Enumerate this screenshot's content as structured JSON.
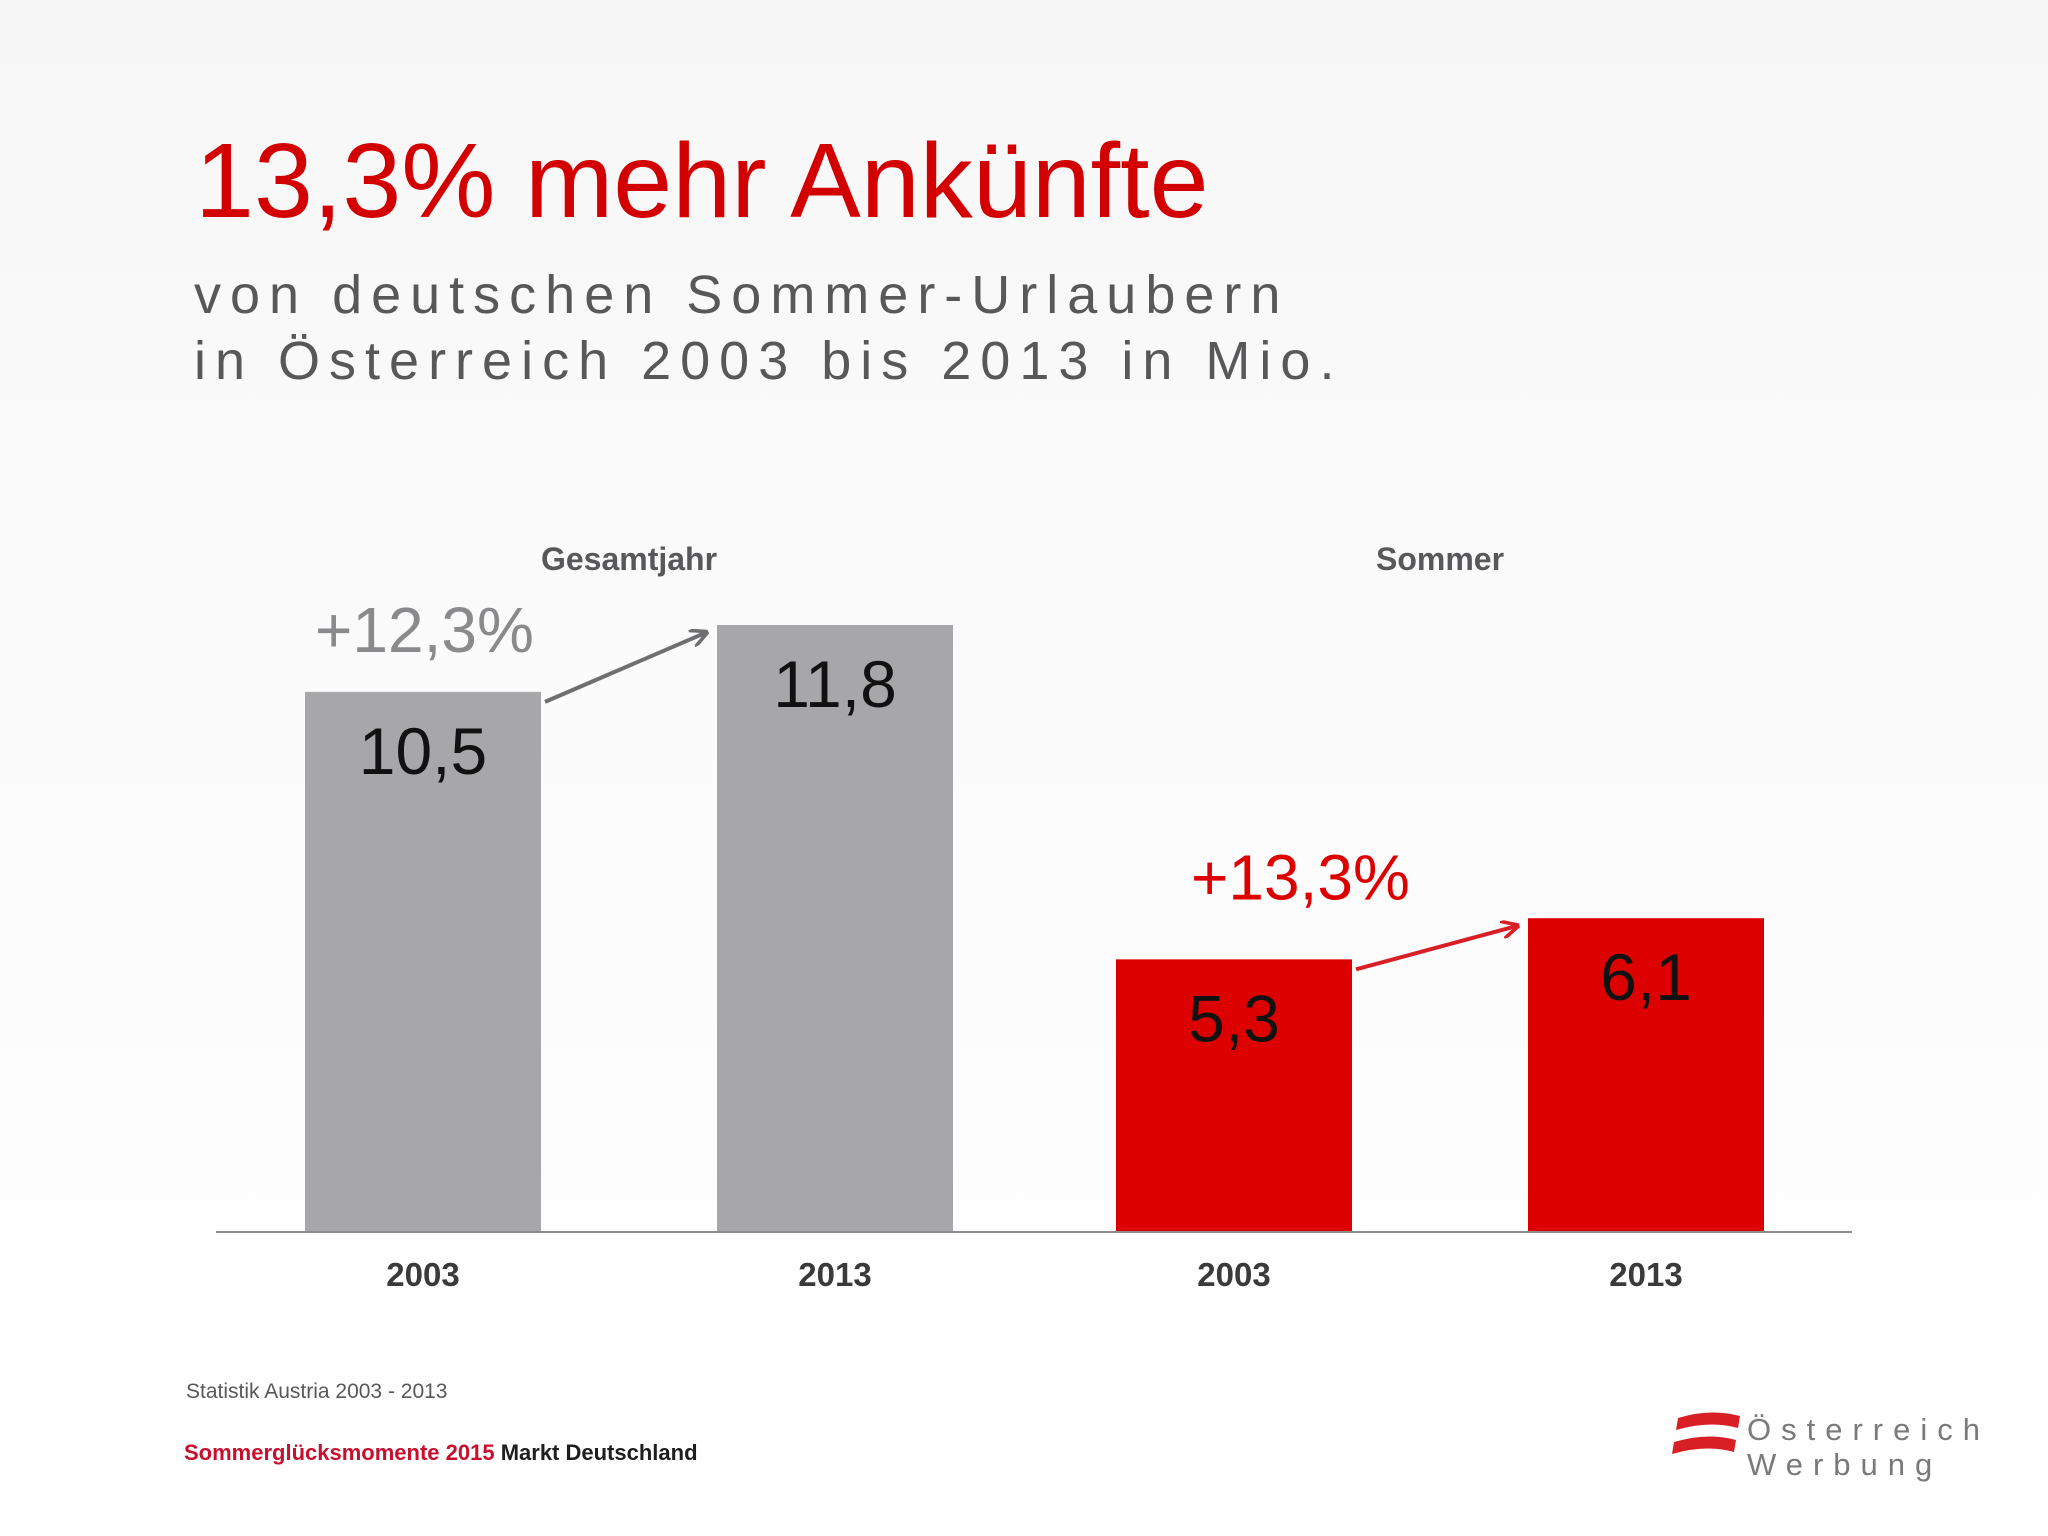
{
  "header": {
    "title": "13,3% mehr Ankünfte",
    "subtitle_line1": "von deutschen Sommer-Urlaubern",
    "subtitle_line2": "in Österreich 2003 bis 2013 in Mio."
  },
  "chart_data": {
    "type": "bar",
    "groups": [
      {
        "name": "Gesamtjahr",
        "color": "#a7a6a8",
        "change_label": "+12,3%",
        "change_color": "#8a898b",
        "arrow_color": "#6f6e70",
        "bars": [
          {
            "category": "2003",
            "value": 10.5,
            "label": "10,5"
          },
          {
            "category": "2013",
            "value": 11.8,
            "label": "11,8"
          }
        ]
      },
      {
        "name": "Sommer",
        "color": "#dd0000",
        "change_label": "+13,3%",
        "change_color": "#dd0000",
        "arrow_color": "#d81f26",
        "bars": [
          {
            "category": "2003",
            "value": 5.3,
            "label": "5,3"
          },
          {
            "category": "2013",
            "value": 6.1,
            "label": "6,1"
          }
        ]
      }
    ],
    "ylim": [
      0,
      11.8
    ],
    "grid": false
  },
  "footer": {
    "source": "Statistik Austria 2003 - 2013",
    "campaign": "Sommerglücksmomente 2015",
    "market": "Markt Deutschland"
  },
  "logo": {
    "line1": "Österreich",
    "line2": "Werbung",
    "color": "#d81f26"
  }
}
